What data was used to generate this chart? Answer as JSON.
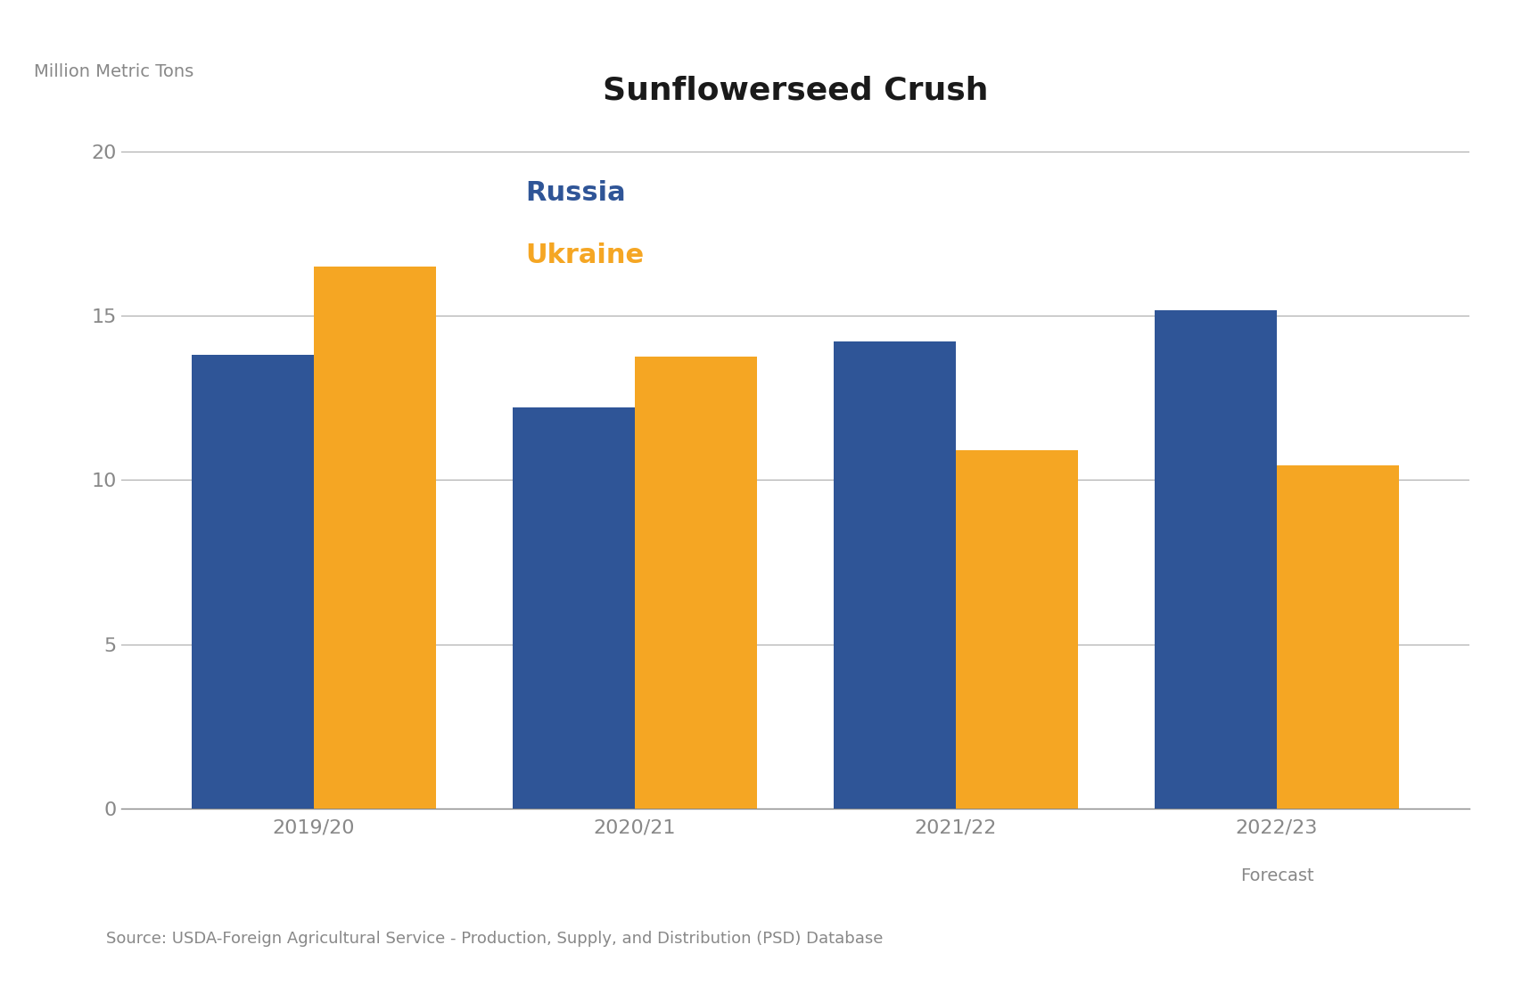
{
  "title": "Sunflowerseed Crush",
  "ylabel": "Million Metric Tons",
  "source": "Source: USDA-Foreign Agricultural Service - Production, Supply, and Distribution (PSD) Database",
  "categories": [
    "2019/20",
    "2020/21",
    "2021/22",
    "2022/23"
  ],
  "forecast_label": "Forecast",
  "russia_values": [
    13.8,
    12.2,
    14.2,
    15.15
  ],
  "ukraine_values": [
    16.5,
    13.75,
    10.9,
    10.45
  ],
  "russia_color": "#2F5597",
  "ukraine_color": "#F5A623",
  "russia_label": "Russia",
  "ukraine_label": "Ukraine",
  "ylim": [
    0,
    21
  ],
  "yticks": [
    0,
    5,
    10,
    15,
    20
  ],
  "background_color": "#FFFFFF",
  "grid_color": "#AAAAAA",
  "bar_width": 0.38,
  "title_fontsize": 26,
  "label_fontsize": 14,
  "tick_fontsize": 16,
  "legend_fontsize": 22,
  "source_fontsize": 13
}
